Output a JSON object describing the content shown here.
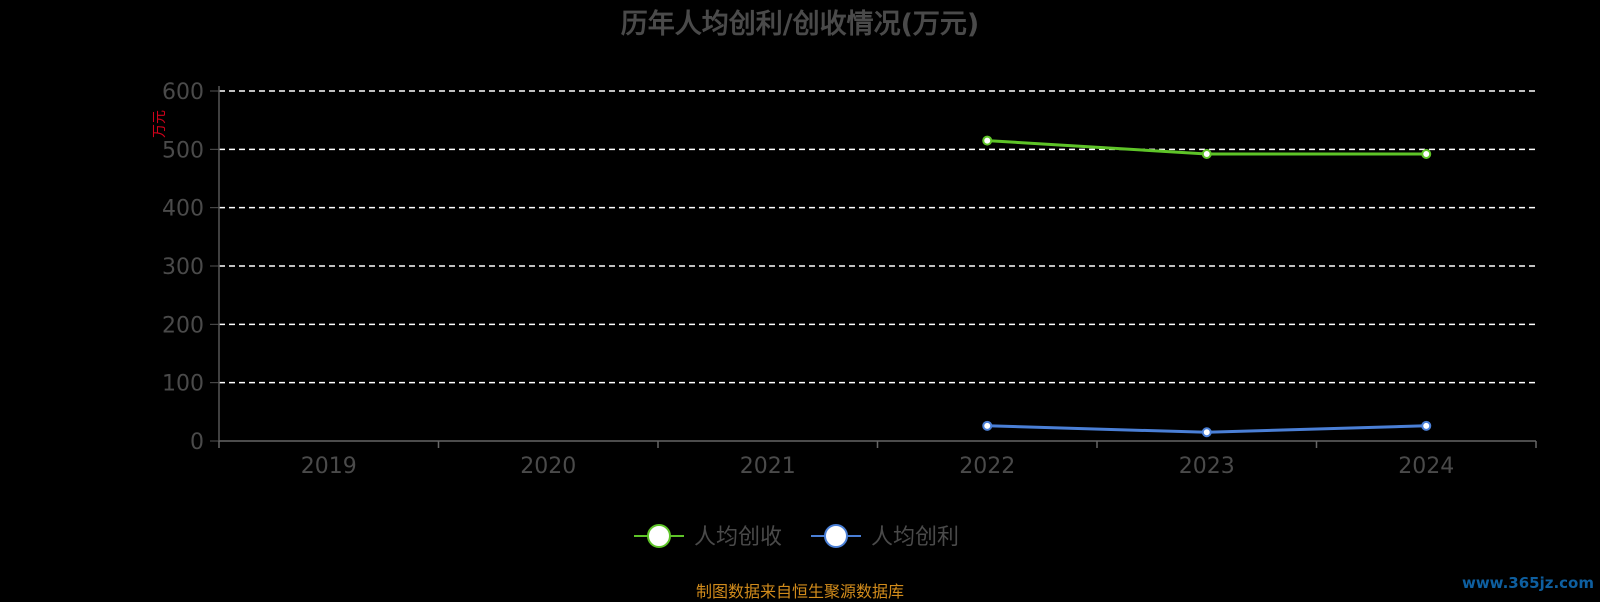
{
  "title": "历年人均创利/创收情况(万元)",
  "unit_label": "万元",
  "source_note": "制图数据来自恒生聚源数据库",
  "watermark": "www.365jz.com",
  "colors": {
    "background": "#000000",
    "axis_text": "#4a4a4a",
    "unit": "#d0021b",
    "grid": "#ffffff",
    "source": "#d18b1b"
  },
  "chart_data": {
    "type": "line",
    "title": "历年人均创利/创收情况(万元)",
    "ylabel": "万元",
    "categories": [
      "2019",
      "2020",
      "2021",
      "2022",
      "2023",
      "2024"
    ],
    "ylim": [
      0,
      600
    ],
    "yticks": [
      0,
      100,
      200,
      300,
      400,
      500,
      600
    ],
    "grid": true,
    "legend_position": "bottom",
    "series": [
      {
        "name": "人均创收",
        "color": "#5ec428",
        "values": [
          null,
          null,
          null,
          515,
          492,
          492
        ]
      },
      {
        "name": "人均创利",
        "color": "#4a7fd6",
        "values": [
          null,
          null,
          null,
          26,
          15,
          26
        ]
      }
    ]
  }
}
